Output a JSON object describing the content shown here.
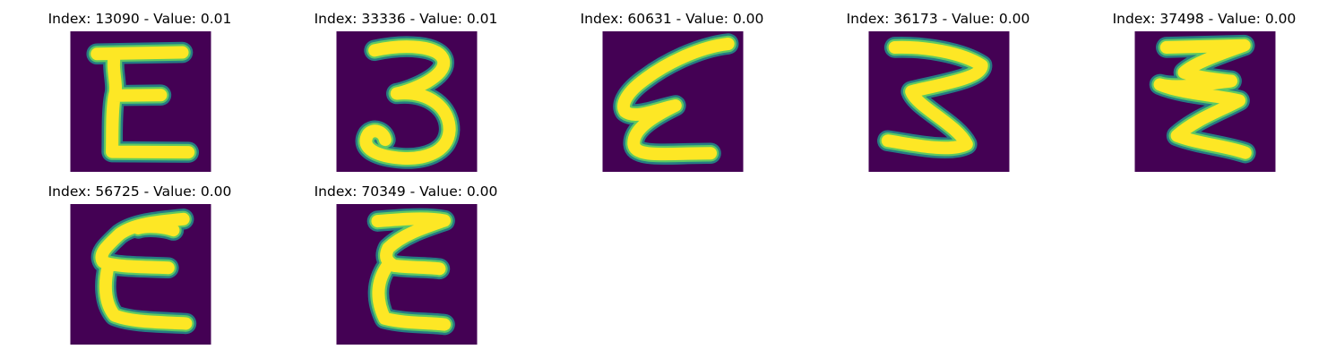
{
  "colors": {
    "background": "#440154",
    "stroke_outer": "#21918c",
    "stroke_mid": "#5ec962",
    "stroke_core": "#fde725"
  },
  "panels": [
    {
      "title": "Index: 13090 - Value: 0.01",
      "glyph": "E"
    },
    {
      "title": "Index: 33336 - Value: 0.01",
      "glyph": "3"
    },
    {
      "title": "Index: 60631 - Value: 0.00",
      "glyph": "slanted E"
    },
    {
      "title": "Index: 36173 - Value: 0.00",
      "glyph": "Z"
    },
    {
      "title": "Index: 37498 - Value: 0.00",
      "glyph": "zigzag E"
    },
    {
      "title": "Index: 56725 - Value: 0.00",
      "glyph": "E"
    },
    {
      "title": "Index: 70349 - Value: 0.00",
      "glyph": "zigzag E"
    }
  ]
}
